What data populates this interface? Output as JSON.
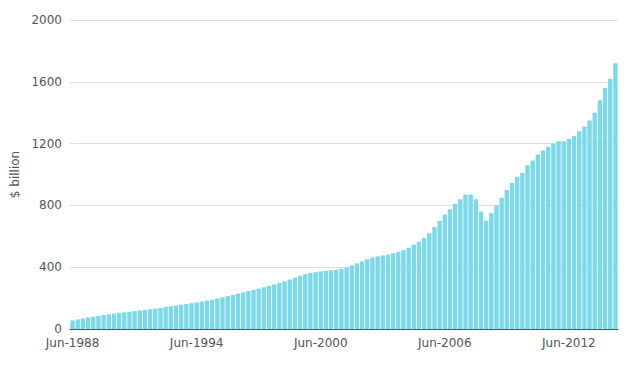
{
  "chart_data": {
    "type": "bar",
    "ylabel": "$ billion",
    "categories": [
      "Jun-1988",
      null,
      null,
      null,
      null,
      null,
      null,
      null,
      null,
      null,
      null,
      null,
      null,
      null,
      null,
      null,
      null,
      null,
      null,
      null,
      null,
      null,
      null,
      null,
      "Jun-1994",
      null,
      null,
      null,
      null,
      null,
      null,
      null,
      null,
      null,
      null,
      null,
      null,
      null,
      null,
      null,
      null,
      null,
      null,
      null,
      null,
      null,
      null,
      null,
      "Jun-2000",
      null,
      null,
      null,
      null,
      null,
      null,
      null,
      null,
      null,
      null,
      null,
      null,
      null,
      null,
      null,
      null,
      null,
      null,
      null,
      null,
      null,
      null,
      null,
      "Jun-2006",
      null,
      null,
      null,
      null,
      null,
      null,
      null,
      null,
      null,
      null,
      null,
      null,
      null,
      null,
      null,
      null,
      null,
      null,
      null,
      null,
      null,
      null,
      null,
      "Jun-2012",
      null,
      null,
      null,
      null,
      null,
      null,
      null,
      null,
      null
    ],
    "values": [
      55,
      62,
      68,
      74,
      79,
      84,
      90,
      95,
      100,
      104,
      108,
      112,
      116,
      120,
      124,
      128,
      132,
      137,
      142,
      147,
      152,
      157,
      162,
      167,
      172,
      178,
      184,
      190,
      197,
      205,
      213,
      221,
      229,
      237,
      245,
      253,
      261,
      270,
      279,
      288,
      298,
      308,
      320,
      332,
      345,
      355,
      362,
      368,
      373,
      377,
      380,
      383,
      390,
      400,
      412,
      425,
      438,
      451,
      462,
      470,
      476,
      482,
      490,
      500,
      510,
      525,
      545,
      565,
      590,
      620,
      660,
      700,
      740,
      775,
      810,
      840,
      870,
      870,
      840,
      760,
      700,
      750,
      800,
      850,
      900,
      945,
      985,
      1010,
      1060,
      1090,
      1130,
      1155,
      1180,
      1200,
      1215,
      1215,
      1230,
      1250,
      1280,
      1310,
      1350,
      1400,
      1480,
      1560,
      1620,
      1720
    ],
    "color": "#7dd8e8",
    "ylim": [
      0,
      2000
    ],
    "yticks": [
      0,
      400,
      800,
      1200,
      1600,
      2000
    ],
    "grid": true
  }
}
